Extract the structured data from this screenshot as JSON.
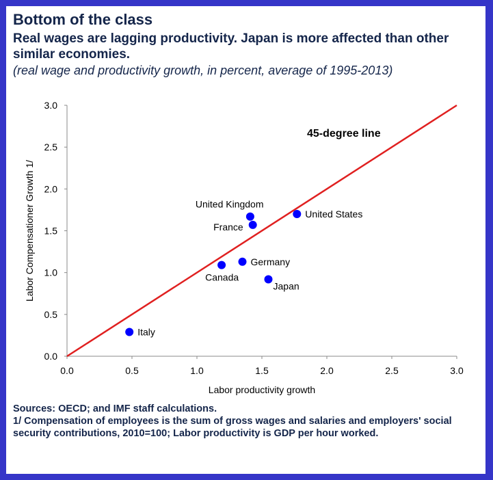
{
  "title": "Bottom of the class",
  "subtitle": "Real wages are lagging productivity.  Japan is more affected than other similar economies.",
  "note": "(real wage and productivity growth, in percent, average of 1995-2013)",
  "footnotes": [
    "Sources: OECD; and IMF staff calculations.",
    "1/ Compensation of employees is the sum of gross wages and salaries and employers' social security contributions, 2010=100; Labor productivity is GDP per hour worked."
  ],
  "colors": {
    "frame": "#3535c8",
    "points": "#0000ff",
    "line": "#e02020",
    "text": "#14254a"
  },
  "chart_data": {
    "type": "scatter",
    "xlabel": "Labor productivity growth",
    "ylabel": "Labor Compensationer Growth 1/",
    "xlim": [
      0,
      3.0
    ],
    "ylim": [
      0,
      3.0
    ],
    "xticks": [
      "0.0",
      "0.5",
      "1.0",
      "1.5",
      "2.0",
      "2.5",
      "3.0"
    ],
    "yticks": [
      "0.0",
      "0.5",
      "1.0",
      "1.5",
      "2.0",
      "2.5",
      "3.0"
    ],
    "grid": false,
    "reference_line": {
      "label": "45-degree line",
      "from": [
        0,
        0
      ],
      "to": [
        3,
        3
      ]
    },
    "points": [
      {
        "name": "Italy",
        "x": 0.48,
        "y": 0.29,
        "label_pos": "right"
      },
      {
        "name": "Canada",
        "x": 1.19,
        "y": 1.09,
        "label_pos": "below-left"
      },
      {
        "name": "Germany",
        "x": 1.35,
        "y": 1.13,
        "label_pos": "right"
      },
      {
        "name": "Japan",
        "x": 1.55,
        "y": 0.92,
        "label_pos": "below-right"
      },
      {
        "name": "United Kingdom",
        "x": 1.41,
        "y": 1.67,
        "label_pos": "above-left"
      },
      {
        "name": "France",
        "x": 1.43,
        "y": 1.57,
        "label_pos": "left"
      },
      {
        "name": "United States",
        "x": 1.77,
        "y": 1.7,
        "label_pos": "right"
      }
    ]
  }
}
